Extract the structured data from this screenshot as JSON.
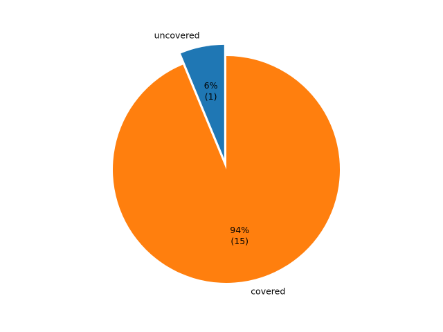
{
  "chart_data": {
    "type": "pie",
    "title": "",
    "start_angle_deg": 90,
    "direction": "counterclockwise",
    "slices": [
      {
        "label": "uncovered",
        "value": 1,
        "percent_text": "6%",
        "count_text": "(1)",
        "color": "#1f77b4",
        "exploded": true
      },
      {
        "label": "covered",
        "value": 15,
        "percent_text": "94%",
        "count_text": "(15)",
        "color": "#ff7f0e",
        "exploded": false
      }
    ]
  }
}
